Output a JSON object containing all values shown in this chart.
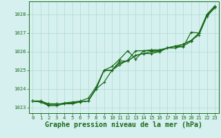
{
  "x": [
    0,
    1,
    2,
    3,
    4,
    5,
    6,
    7,
    8,
    9,
    10,
    11,
    12,
    13,
    14,
    15,
    16,
    17,
    18,
    19,
    20,
    21,
    22,
    23
  ],
  "series": [
    [
      1023.35,
      1023.35,
      1023.2,
      1023.2,
      1023.2,
      1023.25,
      1023.3,
      1023.35,
      1024.0,
      1024.35,
      1025.0,
      1025.3,
      1025.55,
      1026.05,
      1026.05,
      1026.05,
      1026.05,
      1026.2,
      1026.3,
      1026.25,
      1027.05,
      1027.0,
      1028.0,
      1028.45
    ],
    [
      1023.35,
      1023.35,
      1023.2,
      1023.2,
      1023.2,
      1023.25,
      1023.3,
      1023.35,
      1024.0,
      1025.0,
      1025.2,
      1025.6,
      1026.05,
      1025.6,
      1026.05,
      1026.1,
      1026.1,
      1026.2,
      1026.2,
      1026.3,
      1026.55,
      1027.0,
      1028.0,
      1028.45
    ],
    [
      1023.35,
      1023.3,
      1023.15,
      1023.15,
      1023.25,
      1023.3,
      1023.35,
      1023.5,
      1024.1,
      1025.0,
      1025.0,
      1025.5,
      1025.5,
      1025.8,
      1025.9,
      1026.0,
      1026.0,
      1026.2,
      1026.3,
      1026.4,
      1026.6,
      1027.0,
      1027.95,
      1028.4
    ],
    [
      1023.35,
      1023.3,
      1023.1,
      1023.1,
      1023.2,
      1023.2,
      1023.3,
      1023.35,
      1024.0,
      1025.0,
      1025.0,
      1025.4,
      1025.5,
      1025.8,
      1025.9,
      1025.9,
      1026.0,
      1026.2,
      1026.2,
      1026.4,
      1026.6,
      1026.9,
      1027.9,
      1028.35
    ]
  ],
  "line_color": "#1a6b1a",
  "marker": "+",
  "bg_color": "#d6f0f0",
  "grid_color": "#aaddcc",
  "ylim": [
    1022.7,
    1028.7
  ],
  "yticks": [
    1023,
    1024,
    1025,
    1026,
    1027,
    1028
  ],
  "xlim": [
    -0.5,
    23.5
  ],
  "xticks": [
    0,
    1,
    2,
    3,
    4,
    5,
    6,
    7,
    8,
    9,
    10,
    11,
    12,
    13,
    14,
    15,
    16,
    17,
    18,
    19,
    20,
    21,
    22,
    23
  ],
  "xlabel": "Graphe pression niveau de la mer (hPa)",
  "xlabel_color": "#1a6b1a",
  "tick_color": "#1a6b1a",
  "axis_color": "#1a6b1a",
  "tick_fontsize": 5.2,
  "xlabel_fontsize": 7.2,
  "linewidth": 0.9,
  "markersize": 3.0,
  "markeredgewidth": 0.8
}
